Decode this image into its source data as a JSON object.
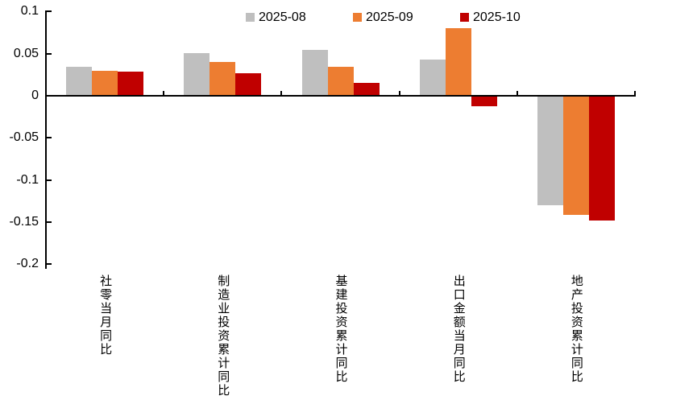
{
  "chart_data": {
    "type": "bar",
    "title": "",
    "categories": [
      "社零当月同比",
      "制造业投资累计同比",
      "基建投资累计同比",
      "出口金额当月同比",
      "地产投资累计同比"
    ],
    "series": [
      {
        "name": "2025-08",
        "color": "#BFBFBF",
        "values": [
          0.034,
          0.051,
          0.054,
          0.043,
          -0.13
        ]
      },
      {
        "name": "2025-09",
        "color": "#ED7D31",
        "values": [
          0.03,
          0.04,
          0.034,
          0.08,
          -0.141
        ]
      },
      {
        "name": "2025-10",
        "color": "#C00000",
        "values": [
          0.029,
          0.027,
          0.015,
          -0.012,
          -0.148
        ]
      }
    ],
    "ylim": [
      -0.2,
      0.1
    ],
    "y_ticks": [
      0.1,
      0.05,
      0,
      -0.05,
      -0.1,
      -0.15,
      -0.2
    ],
    "y_tick_labels": [
      "0.1",
      "0.05",
      "0",
      "-0.05",
      "-0.1",
      "-0.15",
      "-0.2"
    ],
    "legend_position": "top",
    "grid": false,
    "axis_color": "#000000",
    "text_color": "#000000",
    "background_color": "#FFFFFF"
  }
}
